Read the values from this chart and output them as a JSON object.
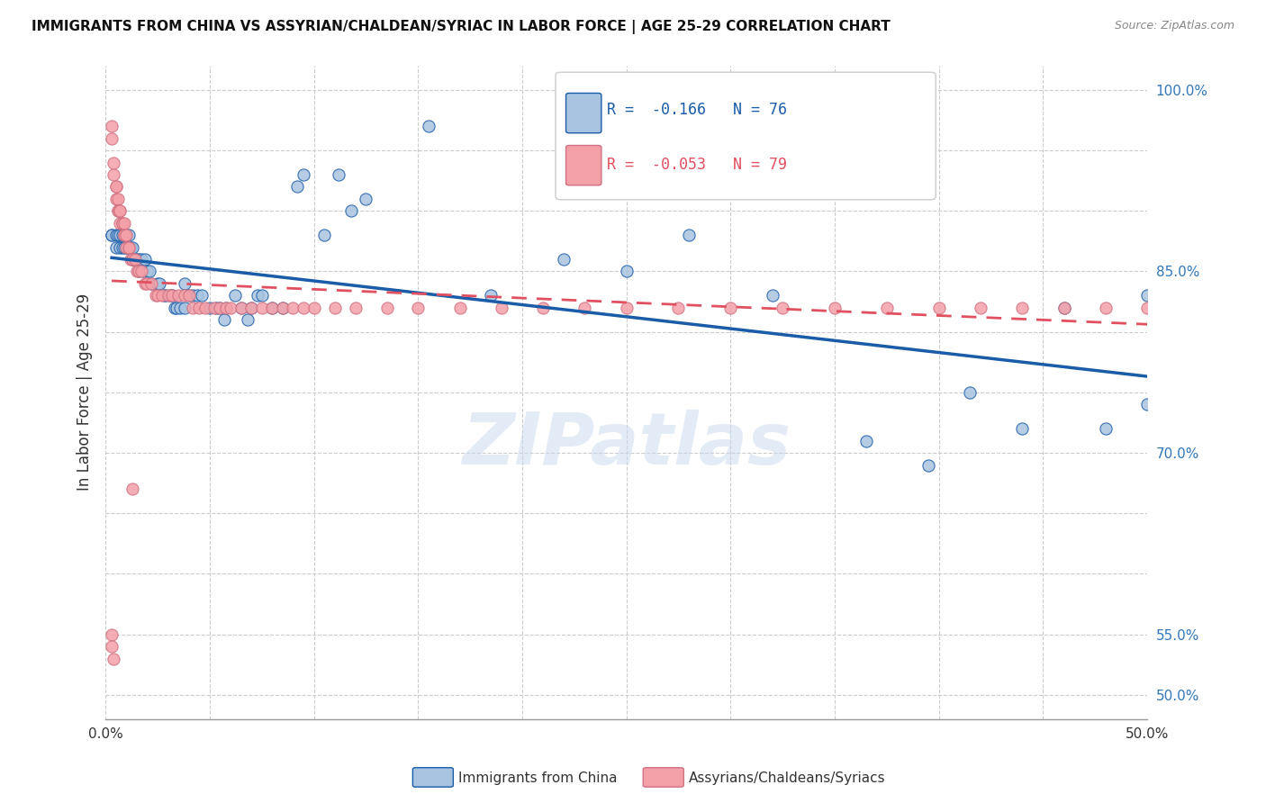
{
  "title": "IMMIGRANTS FROM CHINA VS ASSYRIAN/CHALDEAN/SYRIAC IN LABOR FORCE | AGE 25-29 CORRELATION CHART",
  "source": "Source: ZipAtlas.com",
  "ylabel": "In Labor Force | Age 25-29",
  "xlim": [
    0.0,
    0.5
  ],
  "ylim": [
    0.48,
    1.02
  ],
  "legend_r_blue": "R =  -0.166",
  "legend_n_blue": "N = 76",
  "legend_r_pink": "R =  -0.053",
  "legend_n_pink": "N = 79",
  "legend_label_blue": "Immigrants from China",
  "legend_label_pink": "Assyrians/Chaldeans/Syriacs",
  "watermark": "ZIPatlas",
  "color_blue": "#a8c4e0",
  "color_blue_line": "#1a5ca8",
  "color_pink": "#f4a0a8",
  "color_pink_line": "#e05060",
  "blue_x": [
    0.003,
    0.003,
    0.005,
    0.005,
    0.006,
    0.007,
    0.007,
    0.008,
    0.008,
    0.009,
    0.009,
    0.01,
    0.01,
    0.011,
    0.011,
    0.012,
    0.013,
    0.013,
    0.014,
    0.015,
    0.016,
    0.016,
    0.017,
    0.018,
    0.019,
    0.02,
    0.021,
    0.022,
    0.025,
    0.026,
    0.028,
    0.029,
    0.031,
    0.032,
    0.033,
    0.034,
    0.036,
    0.038,
    0.038,
    0.04,
    0.042,
    0.044,
    0.046,
    0.05,
    0.053,
    0.055,
    0.057,
    0.058,
    0.062,
    0.065,
    0.068,
    0.07,
    0.073,
    0.075,
    0.08,
    0.085,
    0.092,
    0.095,
    0.105,
    0.112,
    0.118,
    0.125,
    0.155,
    0.185,
    0.22,
    0.25,
    0.28,
    0.32,
    0.365,
    0.395,
    0.415,
    0.44,
    0.46,
    0.48,
    0.5,
    0.5
  ],
  "blue_y": [
    0.88,
    0.88,
    0.88,
    0.87,
    0.88,
    0.88,
    0.87,
    0.88,
    0.87,
    0.87,
    0.88,
    0.87,
    0.88,
    0.87,
    0.88,
    0.87,
    0.87,
    0.86,
    0.86,
    0.86,
    0.86,
    0.85,
    0.86,
    0.85,
    0.86,
    0.85,
    0.85,
    0.84,
    0.84,
    0.84,
    0.83,
    0.83,
    0.83,
    0.83,
    0.82,
    0.82,
    0.82,
    0.82,
    0.84,
    0.83,
    0.83,
    0.83,
    0.83,
    0.82,
    0.82,
    0.82,
    0.81,
    0.82,
    0.83,
    0.82,
    0.81,
    0.82,
    0.83,
    0.83,
    0.82,
    0.82,
    0.92,
    0.93,
    0.88,
    0.93,
    0.9,
    0.91,
    0.97,
    0.83,
    0.86,
    0.85,
    0.88,
    0.83,
    0.71,
    0.69,
    0.75,
    0.72,
    0.82,
    0.72,
    0.74,
    0.83
  ],
  "pink_x": [
    0.003,
    0.003,
    0.004,
    0.004,
    0.005,
    0.005,
    0.005,
    0.006,
    0.006,
    0.006,
    0.007,
    0.007,
    0.007,
    0.008,
    0.008,
    0.009,
    0.009,
    0.009,
    0.01,
    0.01,
    0.011,
    0.011,
    0.012,
    0.013,
    0.013,
    0.014,
    0.015,
    0.016,
    0.017,
    0.019,
    0.02,
    0.022,
    0.024,
    0.025,
    0.027,
    0.03,
    0.032,
    0.035,
    0.038,
    0.04,
    0.042,
    0.045,
    0.048,
    0.052,
    0.055,
    0.058,
    0.06,
    0.065,
    0.07,
    0.075,
    0.08,
    0.085,
    0.09,
    0.095,
    0.1,
    0.11,
    0.12,
    0.135,
    0.15,
    0.17,
    0.19,
    0.21,
    0.23,
    0.25,
    0.275,
    0.3,
    0.325,
    0.35,
    0.375,
    0.4,
    0.42,
    0.44,
    0.46,
    0.48,
    0.5,
    0.003,
    0.003,
    0.004,
    0.013
  ],
  "pink_y": [
    0.97,
    0.96,
    0.94,
    0.93,
    0.92,
    0.92,
    0.91,
    0.91,
    0.9,
    0.9,
    0.9,
    0.9,
    0.89,
    0.89,
    0.89,
    0.89,
    0.88,
    0.88,
    0.88,
    0.87,
    0.87,
    0.87,
    0.86,
    0.86,
    0.86,
    0.86,
    0.85,
    0.85,
    0.85,
    0.84,
    0.84,
    0.84,
    0.83,
    0.83,
    0.83,
    0.83,
    0.83,
    0.83,
    0.83,
    0.83,
    0.82,
    0.82,
    0.82,
    0.82,
    0.82,
    0.82,
    0.82,
    0.82,
    0.82,
    0.82,
    0.82,
    0.82,
    0.82,
    0.82,
    0.82,
    0.82,
    0.82,
    0.82,
    0.82,
    0.82,
    0.82,
    0.82,
    0.82,
    0.82,
    0.82,
    0.82,
    0.82,
    0.82,
    0.82,
    0.82,
    0.82,
    0.82,
    0.82,
    0.82,
    0.82,
    0.55,
    0.54,
    0.53,
    0.67
  ],
  "background_color": "#ffffff"
}
